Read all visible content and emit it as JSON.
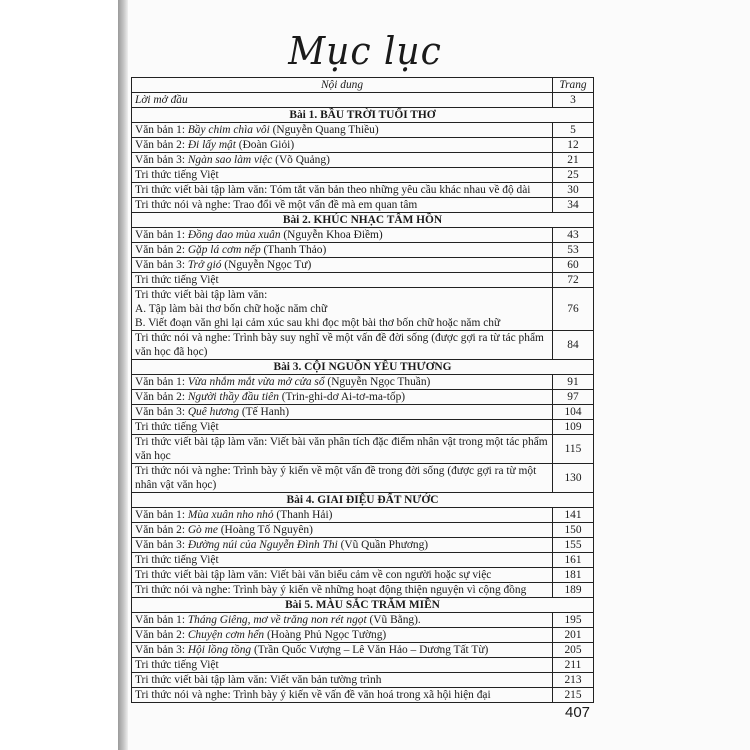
{
  "title": "Mục lục",
  "header": {
    "content": "Nội dung",
    "page": "Trang"
  },
  "preface": {
    "label": "Lời mở đầu",
    "page": "3"
  },
  "sections": [
    {
      "heading": "Bài 1. BẦU TRỜI TUỔI THƠ",
      "rows": [
        {
          "prefix": "Văn bản 1: ",
          "title": "Bầy chim chìa vôi",
          "suffix": " (Nguyễn Quang Thiều)",
          "page": "5"
        },
        {
          "prefix": "Văn bản 2: ",
          "title": "Đi lấy mật",
          "suffix": " (Đoàn Giỏi)",
          "page": "12"
        },
        {
          "prefix": "Văn bản 3: ",
          "title": "Ngàn sao làm việc",
          "suffix": " (Võ Quảng)",
          "page": "21"
        },
        {
          "prefix": "Tri thức tiếng Việt",
          "page": "25"
        },
        {
          "prefix": "Tri thức viết bài tập làm văn: Tóm tắt văn bản theo những yêu cầu khác nhau về độ dài",
          "page": "30"
        },
        {
          "prefix": "Tri thức nói và nghe: Trao đổi về một vấn đề mà em quan tâm",
          "page": "34"
        }
      ]
    },
    {
      "heading": "Bài 2. KHÚC NHẠC TÂM HỒN",
      "rows": [
        {
          "prefix": "Văn bản 1: ",
          "title": "Đồng dao mùa xuân",
          "suffix": " (Nguyễn Khoa Điềm)",
          "page": "43"
        },
        {
          "prefix": "Văn bản 2: ",
          "title": "Gặp lá cơm nếp",
          "suffix": " (Thanh Thảo)",
          "page": "53"
        },
        {
          "prefix": "Văn bản 3: ",
          "title": "Trở gió",
          "suffix": " (Nguyễn Ngọc Tư)",
          "page": "60"
        },
        {
          "prefix": "Tri thức tiếng Việt",
          "page": "72"
        },
        {
          "prefix": "Tri thức viết bài tập làm văn:",
          "line2": "A. Tập làm bài thơ bốn chữ hoặc năm chữ",
          "line3": "B. Viết đoạn văn ghi lại cảm xúc sau khi đọc một bài thơ bốn chữ hoặc năm chữ",
          "page": "76"
        },
        {
          "prefix": "Tri thức nói và nghe: Trình bày suy nghĩ về một vấn đề đời sống (được gợi ra từ tác phẩm văn học đã học)",
          "page": "84"
        }
      ]
    },
    {
      "heading": "Bài 3. CỘI NGUỒN YÊU THƯƠNG",
      "rows": [
        {
          "prefix": "Văn bản 1: ",
          "title": "Vừa nhắm mắt vừa mở cửa sổ",
          "suffix": " (Nguyễn Ngọc Thuần)",
          "page": "91"
        },
        {
          "prefix": "Văn bản 2: ",
          "title": "Người thầy đầu tiên",
          "suffix": " (Trin-ghi-dơ Ai-tơ-ma-tốp)",
          "page": "97"
        },
        {
          "prefix": "Văn bản 3: ",
          "title": "Quê hương",
          "suffix": " (Tế Hanh)",
          "page": "104"
        },
        {
          "prefix": "Tri thức tiếng Việt",
          "page": "109"
        },
        {
          "prefix": "Tri thức viết bài tập làm văn: Viết bài văn phân tích đặc điểm nhân vật trong một tác phẩm văn học",
          "page": "115"
        },
        {
          "prefix": "Tri thức nói và nghe: Trình bày ý kiến về một vấn đề trong đời sống (được gợi ra từ một nhân vật văn học)",
          "page": "130"
        }
      ]
    },
    {
      "heading": "Bài 4. GIAI ĐIỆU ĐẤT NƯỚC",
      "rows": [
        {
          "prefix": "Văn bản 1: ",
          "title": "Mùa xuân nho nhỏ",
          "suffix": " (Thanh Hải)",
          "page": "141"
        },
        {
          "prefix": "Văn bản 2: ",
          "title": "Gò me",
          "suffix": " (Hoàng Tố Nguyên)",
          "page": "150"
        },
        {
          "prefix": "Văn bản 3: ",
          "title": "Đường núi của Nguyễn Đình Thi",
          "suffix": " (Vũ Quần Phương)",
          "page": "155"
        },
        {
          "prefix": "Tri thức tiếng Việt",
          "page": "161"
        },
        {
          "prefix": "Tri thức viết bài tập làm văn: Viết bài văn biểu cảm về con người hoặc sự việc",
          "page": "181"
        },
        {
          "prefix": "Tri thức nói và nghe: Trình bày ý kiến về những hoạt động thiện nguyện vì cộng đồng",
          "page": "189"
        }
      ]
    },
    {
      "heading": "Bài 5. MÀU SẮC TRĂM MIỀN",
      "rows": [
        {
          "prefix": "Văn bản 1: ",
          "title": "Tháng Giêng, mơ về trăng non rét ngọt",
          "suffix": " (Vũ Bằng).",
          "page": "195"
        },
        {
          "prefix": "Văn bản 2: ",
          "title": "Chuyện cơm hến",
          "suffix": " (Hoàng Phủ Ngọc Tường)",
          "page": "201"
        },
        {
          "prefix": "Văn bản 3: ",
          "title": "Hội lồng tồng",
          "suffix": " (Trần Quốc Vượng – Lê Văn Hảo – Dương Tất Từ)",
          "page": "205"
        },
        {
          "prefix": "Tri thức tiếng Việt",
          "page": "211"
        },
        {
          "prefix": "Tri thức viết bài tập làm văn: Viết văn bản tường trình",
          "page": "213"
        },
        {
          "prefix": "Tri thức nói và nghe: Trình bày ý kiến về vấn đề văn hoá trong xã hội hiện đại",
          "page": "215"
        }
      ]
    }
  ],
  "page_number": "407"
}
